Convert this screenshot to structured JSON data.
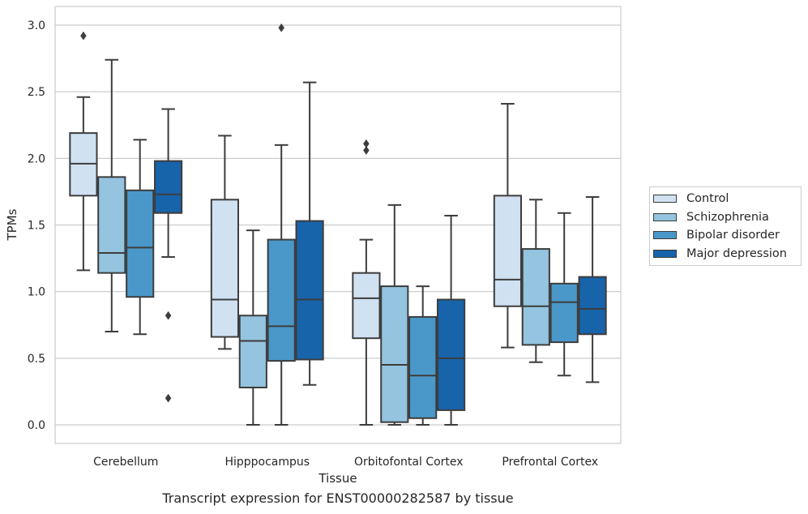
{
  "caption": "Transcript expression for ENST00000282587 by tissue",
  "chart_data": {
    "type": "box",
    "xlabel": "Tissue",
    "ylabel": "TPMs",
    "ylim": [
      -0.14,
      3.14
    ],
    "yticks": [
      0.0,
      0.5,
      1.0,
      1.5,
      2.0,
      2.5,
      3.0
    ],
    "ytick_labels": [
      "0.0",
      "0.5",
      "1.0",
      "1.5",
      "2.0",
      "2.5",
      "3.0"
    ],
    "grid": true,
    "legend_position": "right",
    "categories": [
      "Cerebellum",
      "Hipppocampus",
      "Orbitofontal Cortex",
      "Prefrontal Cortex"
    ],
    "series": [
      {
        "name": "Control",
        "color": "#d0e1f2",
        "boxes": [
          {
            "whislo": 1.16,
            "q1": 1.72,
            "med": 1.96,
            "q3": 2.19,
            "whishi": 2.46,
            "fliers": [
              2.92
            ]
          },
          {
            "whislo": 0.57,
            "q1": 0.66,
            "med": 0.94,
            "q3": 1.69,
            "whishi": 2.17,
            "fliers": []
          },
          {
            "whislo": 0.0,
            "q1": 0.65,
            "med": 0.95,
            "q3": 1.14,
            "whishi": 1.39,
            "fliers": [
              2.06,
              2.11
            ]
          },
          {
            "whislo": 0.58,
            "q1": 0.89,
            "med": 1.09,
            "q3": 1.72,
            "whishi": 2.41,
            "fliers": []
          }
        ]
      },
      {
        "name": "Schizophrenia",
        "color": "#94c4df",
        "boxes": [
          {
            "whislo": 0.7,
            "q1": 1.14,
            "med": 1.29,
            "q3": 1.86,
            "whishi": 2.74,
            "fliers": []
          },
          {
            "whislo": 0.0,
            "q1": 0.28,
            "med": 0.63,
            "q3": 0.82,
            "whishi": 1.46,
            "fliers": []
          },
          {
            "whislo": 0.0,
            "q1": 0.02,
            "med": 0.45,
            "q3": 1.04,
            "whishi": 1.65,
            "fliers": []
          },
          {
            "whislo": 0.47,
            "q1": 0.6,
            "med": 0.89,
            "q3": 1.32,
            "whishi": 1.69,
            "fliers": []
          }
        ]
      },
      {
        "name": "Bipolar disorder",
        "color": "#4a98c9",
        "boxes": [
          {
            "whislo": 0.68,
            "q1": 0.96,
            "med": 1.33,
            "q3": 1.76,
            "whishi": 2.14,
            "fliers": []
          },
          {
            "whislo": 0.0,
            "q1": 0.48,
            "med": 0.74,
            "q3": 1.39,
            "whishi": 2.1,
            "fliers": [
              2.98
            ]
          },
          {
            "whislo": 0.0,
            "q1": 0.05,
            "med": 0.37,
            "q3": 0.81,
            "whishi": 1.04,
            "fliers": []
          },
          {
            "whislo": 0.37,
            "q1": 0.62,
            "med": 0.92,
            "q3": 1.06,
            "whishi": 1.59,
            "fliers": []
          }
        ]
      },
      {
        "name": "Major depression",
        "color": "#1764ab",
        "boxes": [
          {
            "whislo": 1.26,
            "q1": 1.59,
            "med": 1.73,
            "q3": 1.98,
            "whishi": 2.37,
            "fliers": [
              0.82,
              0.2
            ]
          },
          {
            "whislo": 0.3,
            "q1": 0.49,
            "med": 0.94,
            "q3": 1.53,
            "whishi": 2.57,
            "fliers": []
          },
          {
            "whislo": 0.0,
            "q1": 0.11,
            "med": 0.5,
            "q3": 0.94,
            "whishi": 1.57,
            "fliers": []
          },
          {
            "whislo": 0.32,
            "q1": 0.68,
            "med": 0.87,
            "q3": 1.11,
            "whishi": 1.71,
            "fliers": []
          }
        ]
      }
    ]
  }
}
